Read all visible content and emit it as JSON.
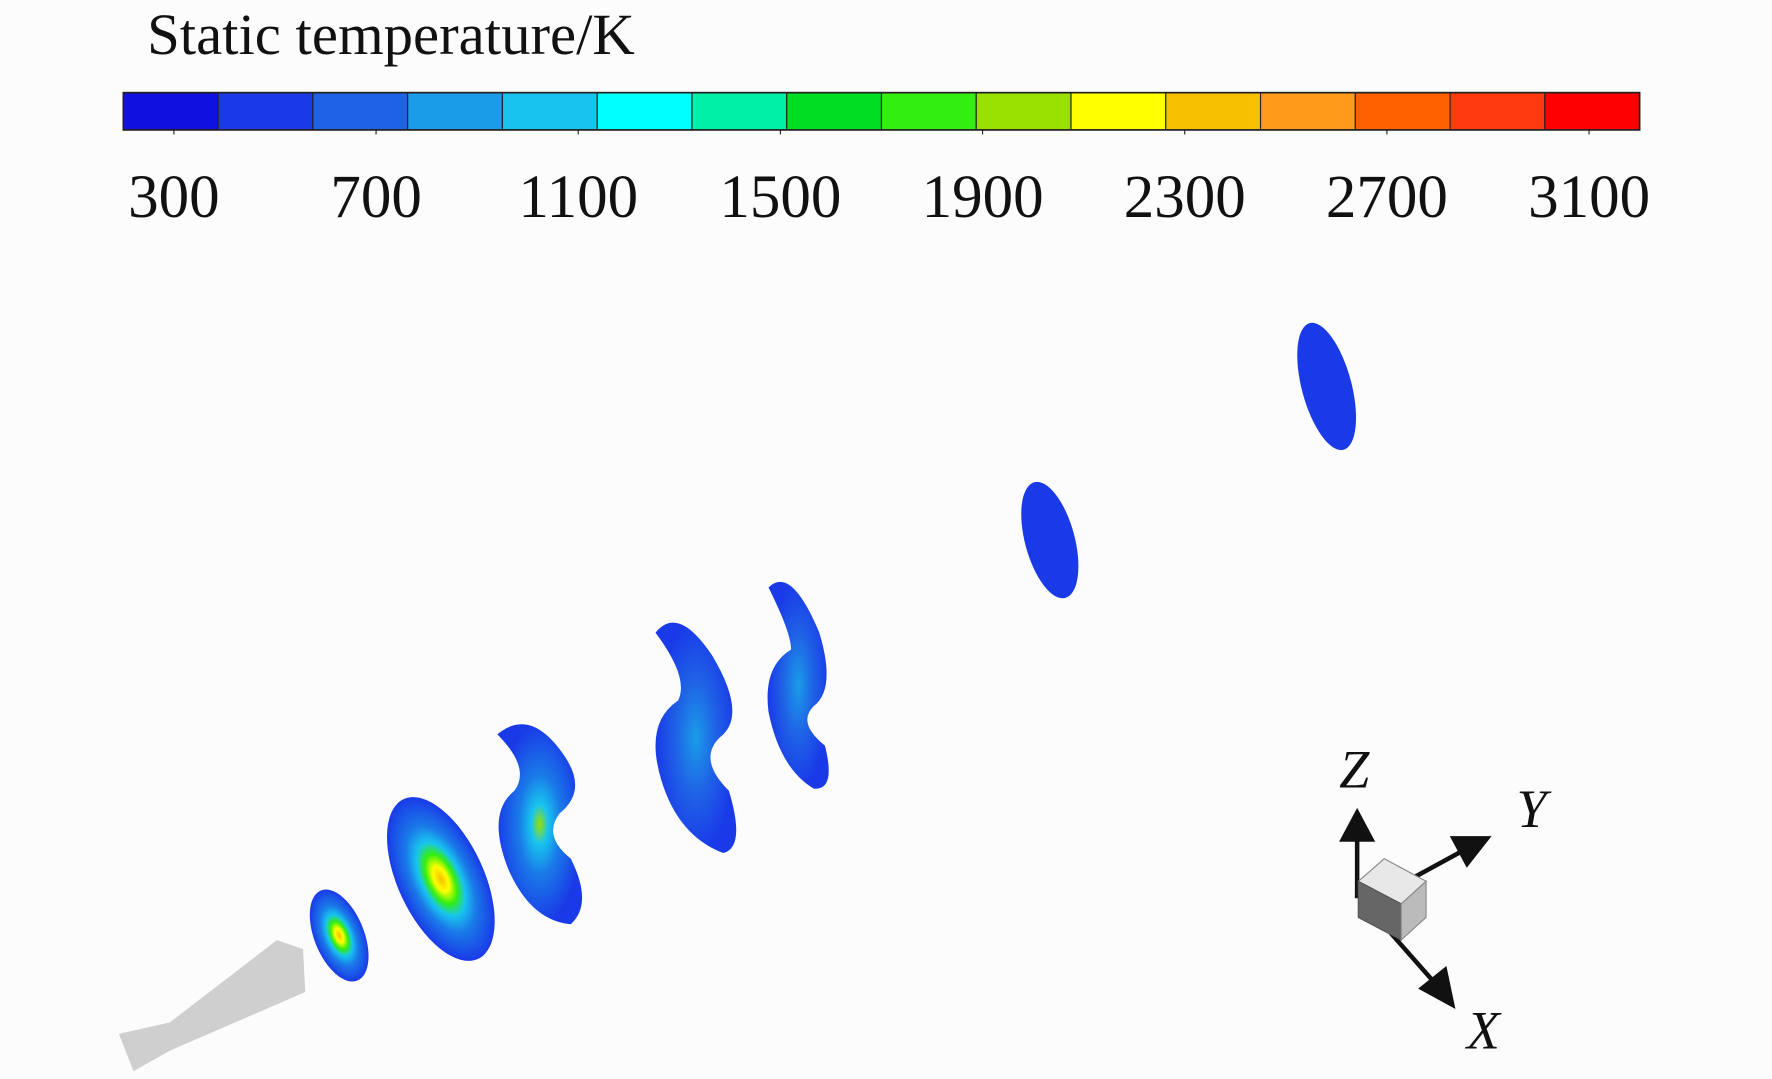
{
  "chart_data": {
    "type": "contour",
    "title": "Static temperature/K",
    "colorbar": {
      "lim": [
        200,
        3200
      ],
      "ticks": [
        300,
        700,
        1100,
        1500,
        1900,
        2300,
        2700,
        3100
      ],
      "colors": [
        "#1010e0",
        "#1a3ae8",
        "#1f62e6",
        "#1a9ce8",
        "#18c4ef",
        "#00ffff",
        "#00f0a8",
        "#00dd22",
        "#33ee11",
        "#99e000",
        "#ffff00",
        "#f6c000",
        "#ff9a1a",
        "#ff6000",
        "#ff3a10",
        "#ff0000"
      ]
    },
    "axis_labels": {
      "x": "X",
      "y": "Y",
      "z": "Z"
    }
  }
}
